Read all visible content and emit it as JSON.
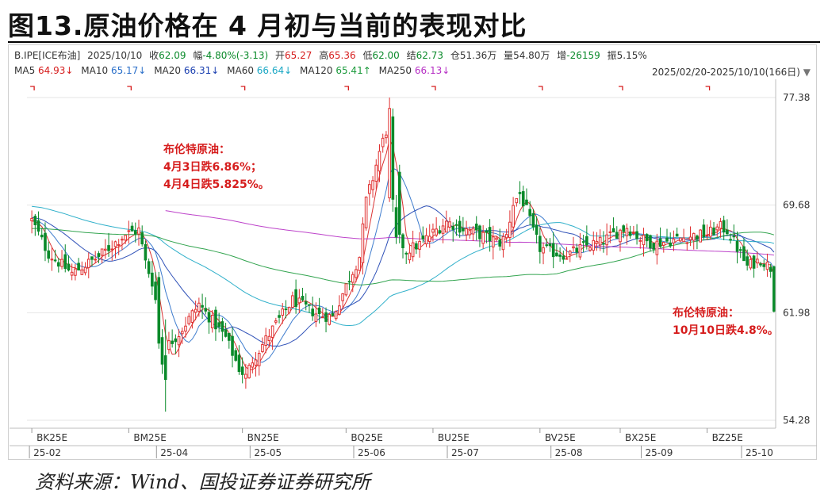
{
  "figure_title": "图13.原油价格在 4 月初与当前的表现对比",
  "source": "资料来源：Wind、国投证券证券研究所",
  "info_bar": {
    "symbol": "B.IPE[ICE布油]",
    "date": "2025/10/10",
    "close_label": "收",
    "close": "62.09",
    "change_label": "幅",
    "change": "-4.80%(-3.13)",
    "open_label": "开",
    "open": "65.27",
    "high_label": "高",
    "high": "65.36",
    "low_label": "低",
    "low": "62.00",
    "settle_label": "结",
    "settle": "62.73",
    "oi_label": "仓",
    "oi": "51.36万",
    "volume_label": "量",
    "volume": "54.80万",
    "oi_change_label": "增",
    "oi_change": "-26159",
    "amplitude_label": "振",
    "amplitude": "5.15%"
  },
  "ma_bar": [
    {
      "label": "MA5",
      "value": "64.93↓",
      "color": "#d61d1d"
    },
    {
      "label": "MA10",
      "value": "65.17↓",
      "color": "#2a6fc9"
    },
    {
      "label": "MA20",
      "value": "66.31↓",
      "color": "#1a3fb0"
    },
    {
      "label": "MA60",
      "value": "66.64↓",
      "color": "#19a7c4"
    },
    {
      "label": "MA120",
      "value": "65.41↑",
      "color": "#1c9a3c"
    },
    {
      "label": "MA250",
      "value": "66.13↓",
      "color": "#b62fc4"
    }
  ],
  "date_range": "2025/02/20-2025/10/10(166日)",
  "annotations": {
    "april": {
      "line1": "布伦特原油：",
      "line2": "4月3日跌6.86%；",
      "line3": "4月4日跌5.825%。"
    },
    "october": {
      "line1": "布伦特原油：",
      "line2": "10月10日跌4.8%。"
    }
  },
  "chart_data": {
    "type": "candlestick",
    "y_ticks": [
      77.38,
      69.68,
      61.98,
      54.28
    ],
    "ylim": [
      54.28,
      77.38
    ],
    "contract_labels": [
      {
        "label": "BK25E",
        "x": 0
      },
      {
        "label": "BM25E",
        "x": 29
      },
      {
        "label": "BN25E",
        "x": 63
      },
      {
        "label": "BQ25E",
        "x": 94
      },
      {
        "label": "BU25E",
        "x": 120
      },
      {
        "label": "BV25E",
        "x": 152
      },
      {
        "label": "BX25E",
        "x": 176
      },
      {
        "label": "BZ25E",
        "x": 202
      }
    ],
    "month_labels": [
      {
        "label": "25-02",
        "x": 0
      },
      {
        "label": "25-04",
        "x": 38
      },
      {
        "label": "25-05",
        "x": 66
      },
      {
        "label": "25-06",
        "x": 97
      },
      {
        "label": "25-07",
        "x": 125
      },
      {
        "label": "25-08",
        "x": 156
      },
      {
        "label": "25-09",
        "x": 183
      },
      {
        "label": "25-10",
        "x": 213
      }
    ],
    "up_color": "#e03030",
    "down_color": "#0a8a2a",
    "series_keypoints": {
      "close": [
        [
          0,
          68.6
        ],
        [
          5,
          66.2
        ],
        [
          12,
          64.8
        ],
        [
          20,
          66.0
        ],
        [
          28,
          67.6
        ],
        [
          32,
          67.9
        ],
        [
          34,
          65.6
        ],
        [
          36,
          64.2
        ],
        [
          38,
          61.6
        ],
        [
          40,
          59.5
        ],
        [
          44,
          60.5
        ],
        [
          50,
          62.6
        ],
        [
          54,
          61.4
        ],
        [
          58,
          60.2
        ],
        [
          62,
          58.0
        ],
        [
          64,
          57.4
        ],
        [
          66,
          58.6
        ],
        [
          72,
          60.8
        ],
        [
          78,
          62.9
        ],
        [
          86,
          61.8
        ],
        [
          90,
          61.7
        ],
        [
          94,
          63.9
        ],
        [
          98,
          66.0
        ],
        [
          100,
          70.0
        ],
        [
          102,
          71.6
        ],
        [
          104,
          73.5
        ],
        [
          106,
          75.0
        ],
        [
          107,
          74.2
        ],
        [
          108,
          77.0
        ],
        [
          110,
          67.2
        ],
        [
          112,
          66.4
        ],
        [
          116,
          66.9
        ],
        [
          120,
          67.7
        ],
        [
          124,
          68.5
        ],
        [
          130,
          67.9
        ],
        [
          136,
          67.4
        ],
        [
          140,
          67.0
        ],
        [
          142,
          67.5
        ],
        [
          144,
          69.8
        ],
        [
          146,
          70.5
        ],
        [
          148,
          69.3
        ],
        [
          150,
          67.8
        ],
        [
          152,
          66.6
        ],
        [
          156,
          66.3
        ],
        [
          160,
          66.1
        ],
        [
          166,
          66.8
        ],
        [
          170,
          67.0
        ],
        [
          174,
          67.6
        ],
        [
          178,
          68.1
        ],
        [
          182,
          67.3
        ],
        [
          186,
          66.9
        ],
        [
          190,
          67.1
        ],
        [
          194,
          67.3
        ],
        [
          198,
          67.5
        ],
        [
          202,
          67.6
        ],
        [
          206,
          68.1
        ],
        [
          208,
          67.9
        ],
        [
          212,
          66.2
        ],
        [
          214,
          65.3
        ],
        [
          218,
          65.8
        ],
        [
          221,
          65.2
        ],
        [
          222,
          62.09
        ]
      ]
    },
    "moving_averages": {
      "MA5": {
        "color": "#d61d1d"
      },
      "MA10": {
        "color": "#2a6fc9"
      },
      "MA20": {
        "color": "#1a3fb0"
      },
      "MA60": {
        "color": "#19a7c4"
      },
      "MA120": {
        "color": "#1c9a3c"
      },
      "MA250": {
        "color": "#b62fc4"
      }
    }
  }
}
